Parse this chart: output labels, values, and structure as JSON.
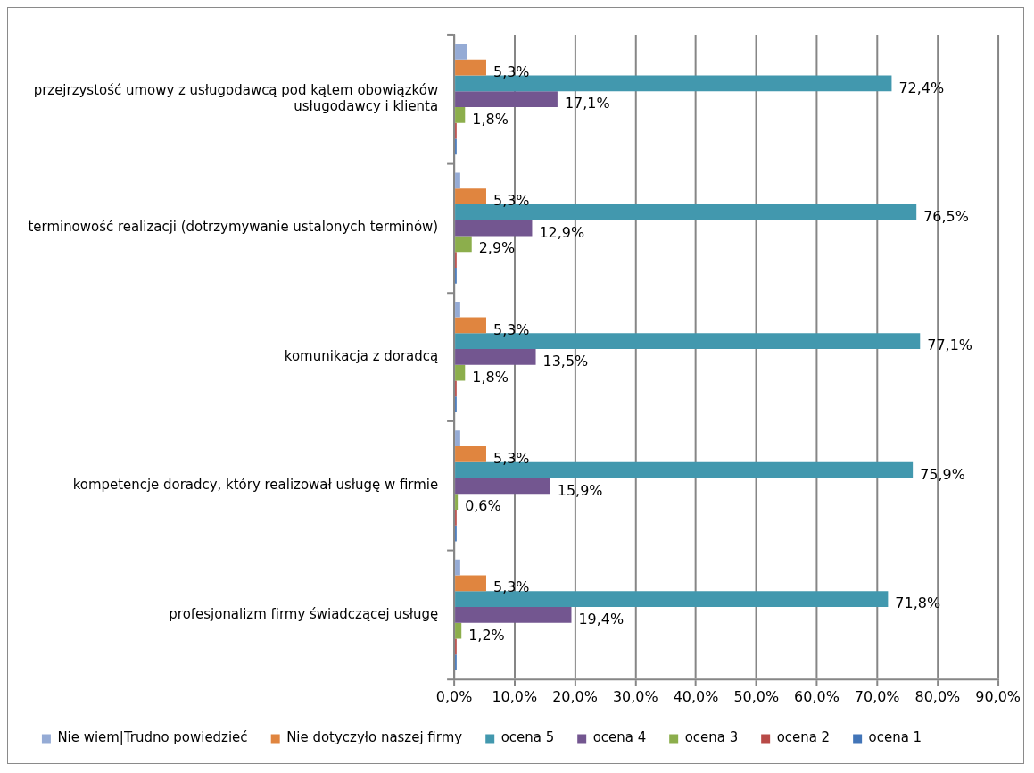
{
  "chart_data": {
    "type": "bar",
    "orientation": "horizontal",
    "categories": [
      "przejrzystość umowy z usługodawcą pod kątem obowiązków usługodawcy i klienta",
      "terminowość realizacji (dotrzymywanie ustalonych terminów)",
      "komunikacja z doradcą",
      "kompetencje doradcy, który realizował usługę w firmie",
      "profesjonalizm firmy świadczącej usługę"
    ],
    "series": [
      {
        "name": "Nie wiem|Trudno powiedzieć",
        "color": "#95abd5",
        "values": [
          2.2,
          1.0,
          1.0,
          1.0,
          1.0
        ]
      },
      {
        "name": "Nie dotyczyło naszej firmy",
        "color": "#e0853f",
        "values": [
          5.3,
          5.3,
          5.3,
          5.3,
          5.3
        ],
        "value_labels": [
          "5,3%",
          "5,3%",
          "5,3%",
          "5,3%",
          "5,3%"
        ]
      },
      {
        "name": "ocena 5",
        "color": "#4298ae",
        "values": [
          72.4,
          76.5,
          77.1,
          75.9,
          71.8
        ],
        "value_labels": [
          "72,4%",
          "76,5%",
          "77,1%",
          "75,9%",
          "71,8%"
        ]
      },
      {
        "name": "ocena 4",
        "color": "#735690",
        "values": [
          17.1,
          12.9,
          13.5,
          15.9,
          19.4
        ],
        "value_labels": [
          "17,1%",
          "12,9%",
          "13,5%",
          "15,9%",
          "19,4%"
        ]
      },
      {
        "name": "ocena 3",
        "color": "#8cae4c",
        "values": [
          1.8,
          2.9,
          1.8,
          0.6,
          1.2
        ],
        "value_labels": [
          "1,8%",
          "2,9%",
          "1,8%",
          "0,6%",
          "1,2%"
        ]
      },
      {
        "name": "ocena 2",
        "color": "#b84a47",
        "values": [
          0.4,
          0.4,
          0.4,
          0.4,
          0.4
        ]
      },
      {
        "name": "ocena 1",
        "color": "#4275b8",
        "values": [
          0.4,
          0.4,
          0.4,
          0.4,
          0.4
        ]
      }
    ],
    "xlim": [
      0,
      90
    ],
    "xticks": [
      {
        "value": 0,
        "label": "0,0%"
      },
      {
        "value": 10,
        "label": "10,0%"
      },
      {
        "value": 20,
        "label": "20,0%"
      },
      {
        "value": 30,
        "label": "30,0%"
      },
      {
        "value": 40,
        "label": "40,0%"
      },
      {
        "value": 50,
        "label": "50,0%"
      },
      {
        "value": 60,
        "label": "60,0%"
      },
      {
        "value": 70,
        "label": "70,0%"
      },
      {
        "value": 80,
        "label": "80,0%"
      },
      {
        "value": 90,
        "label": "90,0%"
      }
    ],
    "grid": "x",
    "legend": "bottom"
  }
}
